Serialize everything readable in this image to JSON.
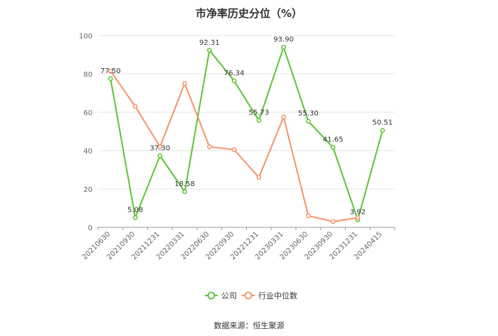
{
  "chart_data": {
    "type": "line",
    "title": "市净率历史分位（%）",
    "categories": [
      "20210630",
      "20210930",
      "20211231",
      "20220331",
      "20220630",
      "20220930",
      "20221231",
      "20230331",
      "20230630",
      "20230930",
      "20231231",
      "20240415"
    ],
    "ylim": [
      0,
      100
    ],
    "yticks": [
      0,
      20,
      40,
      60,
      80,
      100
    ],
    "grid": true,
    "legend_position": "bottom",
    "series": [
      {
        "name": "公司",
        "color": "#5cc435",
        "values": [
          77.5,
          5.08,
          37.3,
          18.58,
          92.31,
          76.34,
          55.73,
          93.9,
          55.3,
          41.65,
          3.92,
          50.51
        ],
        "labels": [
          "77.50",
          "5.08",
          "37.30",
          "18.58",
          "92.31",
          "76.34",
          "55.73",
          "93.90",
          "55.30",
          "41.65",
          "3.92",
          "50.51"
        ]
      },
      {
        "name": "行业中位数",
        "color": "#f59367",
        "values": [
          81.5,
          63,
          42,
          75,
          42,
          40.5,
          26,
          57.5,
          6,
          3,
          5,
          null
        ]
      }
    ]
  },
  "source_text": "数据来源：恒生聚源"
}
